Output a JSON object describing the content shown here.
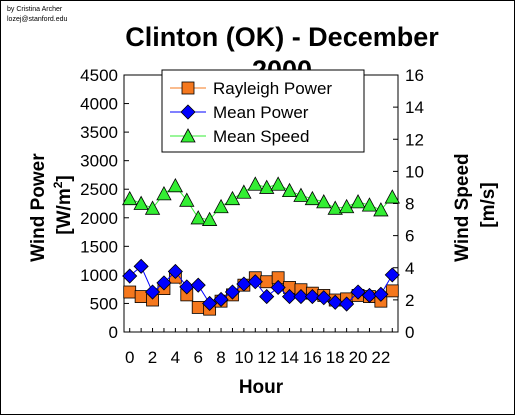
{
  "credit": [
    "by Cristina Archer",
    "lozej@stanford.edu"
  ],
  "chart_data": {
    "type": "line",
    "title": "Clinton (OK) - December 2000",
    "xlabel": "Hour",
    "ylabel_left": "Wind Power [W/m²]",
    "ylabel_left_parts": {
      "main": "Wind Power",
      "unit_open": "[W/m",
      "unit_sup": "2",
      "unit_close": "]"
    },
    "ylabel_right": "Wind Speed [m/s]",
    "ylabel_right_parts": {
      "main": "Wind Speed",
      "unit": "[m/s]"
    },
    "x": [
      0,
      1,
      2,
      3,
      4,
      5,
      6,
      7,
      8,
      9,
      10,
      11,
      12,
      13,
      14,
      15,
      16,
      17,
      18,
      19,
      20,
      21,
      22,
      23
    ],
    "x_ticks": [
      0,
      2,
      4,
      6,
      8,
      10,
      12,
      14,
      16,
      18,
      20,
      22
    ],
    "xlim": [
      -0.5,
      23.5
    ],
    "ylim_left": [
      0,
      4500
    ],
    "y_ticks_left": [
      0,
      500,
      1000,
      1500,
      2000,
      2500,
      3000,
      3500,
      4000,
      4500
    ],
    "ylim_right": [
      0,
      16
    ],
    "y_ticks_right": [
      0,
      2,
      4,
      6,
      8,
      10,
      12,
      14,
      16
    ],
    "legend_position": "top-center",
    "grid": false,
    "series": [
      {
        "name": "Rayleigh Power",
        "axis": "left",
        "marker": "square",
        "color": "#f5781e",
        "values": [
          700,
          620,
          560,
          760,
          960,
          650,
          430,
          400,
          540,
          650,
          820,
          950,
          880,
          950,
          780,
          740,
          680,
          640,
          560,
          580,
          640,
          620,
          540,
          720
        ]
      },
      {
        "name": "Mean Power",
        "axis": "left",
        "marker": "diamond",
        "color": "#0000ff",
        "values": [
          980,
          1150,
          700,
          860,
          1060,
          790,
          820,
          500,
          570,
          700,
          840,
          880,
          620,
          780,
          620,
          620,
          620,
          600,
          520,
          490,
          700,
          640,
          660,
          1000
        ]
      },
      {
        "name": "Mean Speed",
        "axis": "right",
        "marker": "triangle",
        "color": "#33ee33",
        "values": [
          8.3,
          8.0,
          7.7,
          8.6,
          9.1,
          8.2,
          7.1,
          7.0,
          7.8,
          8.3,
          8.7,
          9.2,
          9.0,
          9.2,
          8.8,
          8.5,
          8.3,
          8.1,
          7.7,
          7.8,
          8.1,
          7.9,
          7.6,
          8.4
        ]
      }
    ]
  }
}
